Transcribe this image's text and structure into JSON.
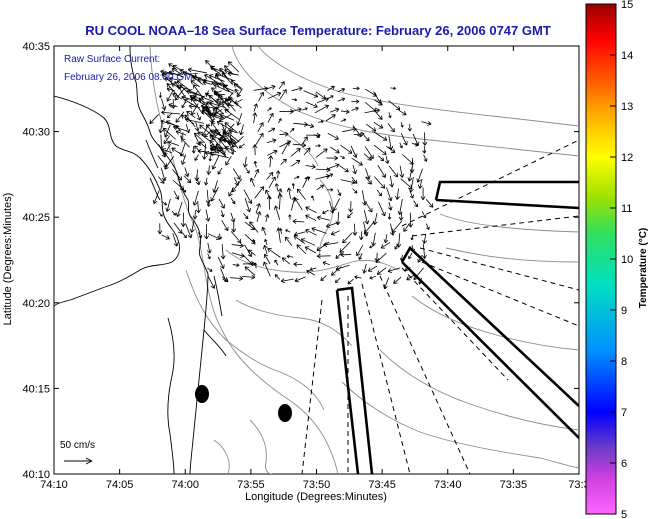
{
  "title": "RU COOL  NOAA–18  Sea Surface Temperature:  February 26, 2006 0747 GMT",
  "current_label": "Raw Surface Current:",
  "current_time": "February 26, 2006 08:00 GMT",
  "scale_label": "50 cm/s",
  "xlabel": "Longitude (Degrees:Minutes)",
  "ylabel": "Latitude (Degrees:Minutes)",
  "x_ticks": [
    "74:10",
    "74:05",
    "74:00",
    "73:55",
    "73:50",
    "73:45",
    "73:40",
    "73:35",
    "73:3"
  ],
  "y_ticks": [
    "40:35",
    "40:30",
    "40:25",
    "40:20",
    "40:15",
    "40:10"
  ],
  "colorbar": {
    "label": "Temperature (°C)",
    "ticks": [
      "15",
      "14",
      "13",
      "12",
      "11",
      "10",
      "9",
      "8",
      "7",
      "6",
      "5"
    ],
    "range": [
      5,
      15
    ]
  },
  "colors": {
    "title": "#1a1ab0",
    "coast": "#000000",
    "bathymetry": "#8c8c8c",
    "vectors": "#000000"
  }
}
